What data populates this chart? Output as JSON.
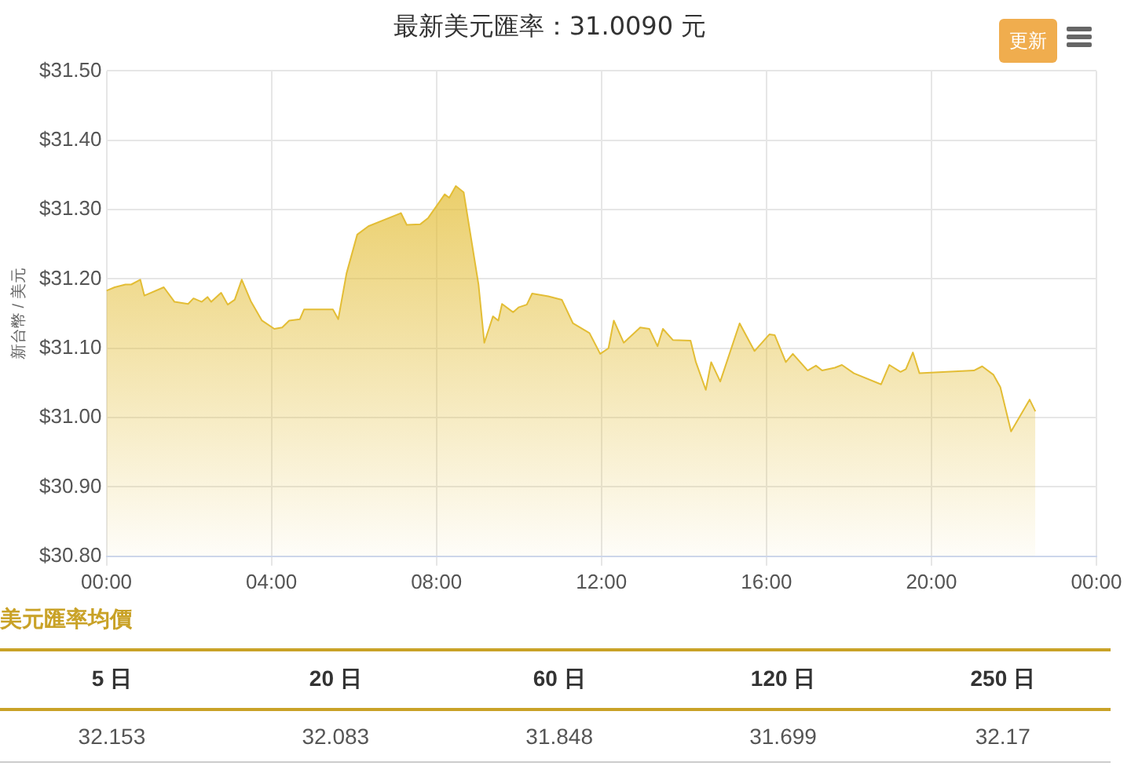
{
  "chart_data": [
    {
      "type": "area",
      "title": "最新美元匯率：31.0090 元",
      "ylabel": "新台幣 / 美元",
      "annotations": [
        "更新"
      ],
      "x": [
        0,
        0.2,
        0.46,
        0.6,
        0.82,
        0.92,
        1.39,
        1.65,
        1.98,
        2.11,
        2.31,
        2.45,
        2.54,
        2.78,
        2.94,
        3.11,
        3.28,
        3.5,
        3.77,
        4.07,
        4.26,
        4.43,
        4.69,
        4.79,
        5.49,
        5.62,
        5.82,
        6.08,
        6.35,
        7.14,
        7.28,
        7.61,
        7.8,
        8.2,
        8.31,
        8.47,
        8.66,
        9.02,
        9.16,
        9.37,
        9.5,
        9.59,
        9.86,
        9.99,
        10.19,
        10.32,
        10.71,
        11.04,
        11.31,
        11.71,
        11.97,
        12.17,
        12.3,
        12.54,
        12.94,
        13.16,
        13.36,
        13.49,
        13.73,
        14.16,
        14.29,
        14.53,
        14.66,
        14.88,
        15.35,
        15.71,
        16.07,
        16.2,
        16.47,
        16.64,
        17.0,
        17.2,
        17.35,
        17.66,
        17.83,
        18.12,
        18.78,
        18.98,
        19.25,
        19.38,
        19.55,
        19.71,
        21.03,
        21.23,
        21.5,
        21.67,
        21.93,
        22.38,
        22.52
      ],
      "series": [
        {
          "color": "#e3bd35",
          "values": [
            31.183,
            31.188,
            31.192,
            31.192,
            31.199,
            31.176,
            31.188,
            31.167,
            31.164,
            31.172,
            31.167,
            31.174,
            31.167,
            31.18,
            31.163,
            31.17,
            31.199,
            31.168,
            31.14,
            31.128,
            31.13,
            31.14,
            31.142,
            31.156,
            31.156,
            31.142,
            31.208,
            31.264,
            31.276,
            31.295,
            31.278,
            31.279,
            31.288,
            31.322,
            31.317,
            31.334,
            31.325,
            31.192,
            31.108,
            31.146,
            31.14,
            31.164,
            31.152,
            31.159,
            31.163,
            31.179,
            31.175,
            31.17,
            31.136,
            31.122,
            31.092,
            31.1,
            31.14,
            31.108,
            31.13,
            31.128,
            31.103,
            31.128,
            31.112,
            31.111,
            31.08,
            31.04,
            31.08,
            31.052,
            31.136,
            31.096,
            31.12,
            31.119,
            31.08,
            31.092,
            31.068,
            31.075,
            31.068,
            31.072,
            31.076,
            31.064,
            31.048,
            31.076,
            31.066,
            31.07,
            31.094,
            31.064,
            31.068,
            31.074,
            31.062,
            31.044,
            30.98,
            31.026,
            31.009
          ]
        }
      ],
      "xlim": [
        0,
        24
      ],
      "xticks": [
        {
          "value": 0,
          "label": "00:00"
        },
        {
          "value": 4,
          "label": "04:00"
        },
        {
          "value": 8,
          "label": "08:00"
        },
        {
          "value": 12,
          "label": "12:00"
        },
        {
          "value": 16,
          "label": "16:00"
        },
        {
          "value": 20,
          "label": "20:00"
        },
        {
          "value": 24,
          "label": "00:00"
        }
      ],
      "ylim": [
        30.8,
        31.5
      ],
      "yticks": [
        {
          "value": 30.8,
          "label": "$30.80"
        },
        {
          "value": 30.9,
          "label": "$30.90"
        },
        {
          "value": 31.0,
          "label": "$31.00"
        },
        {
          "value": 31.1,
          "label": "$31.10"
        },
        {
          "value": 31.2,
          "label": "$31.20"
        },
        {
          "value": 31.3,
          "label": "$31.30"
        },
        {
          "value": 31.4,
          "label": "$31.40"
        },
        {
          "value": 31.5,
          "label": "$31.50"
        }
      ],
      "grid": true,
      "legend": false,
      "marker": "none"
    },
    {
      "type": "other",
      "title": "美元匯率均價",
      "categories": [
        "5 日",
        "20 日",
        "60 日",
        "120 日",
        "250 日"
      ],
      "values": [
        32.153,
        32.083,
        31.848,
        31.699,
        32.17
      ],
      "data_labels": true
    }
  ]
}
